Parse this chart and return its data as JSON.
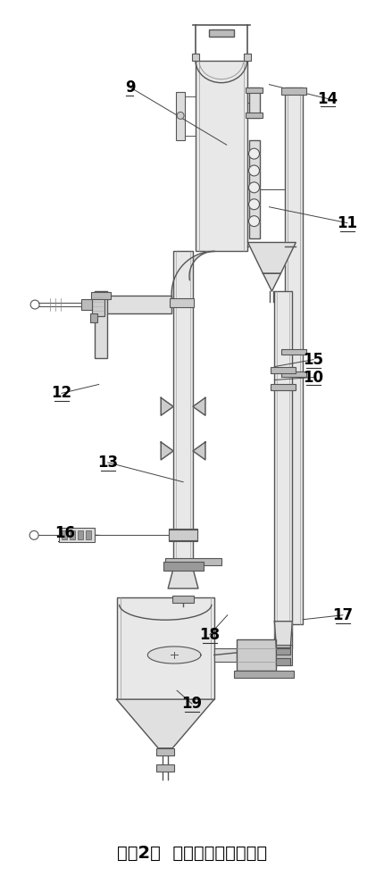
{
  "title": "附图2：  二效蒸发装置示意图",
  "title_fontsize": 14,
  "bg_color": "#ffffff",
  "lc": "#555555",
  "lc2": "#888888",
  "fc_light": "#e8e8e8",
  "fc_mid": "#cccccc",
  "fc_dark": "#aaaaaa"
}
